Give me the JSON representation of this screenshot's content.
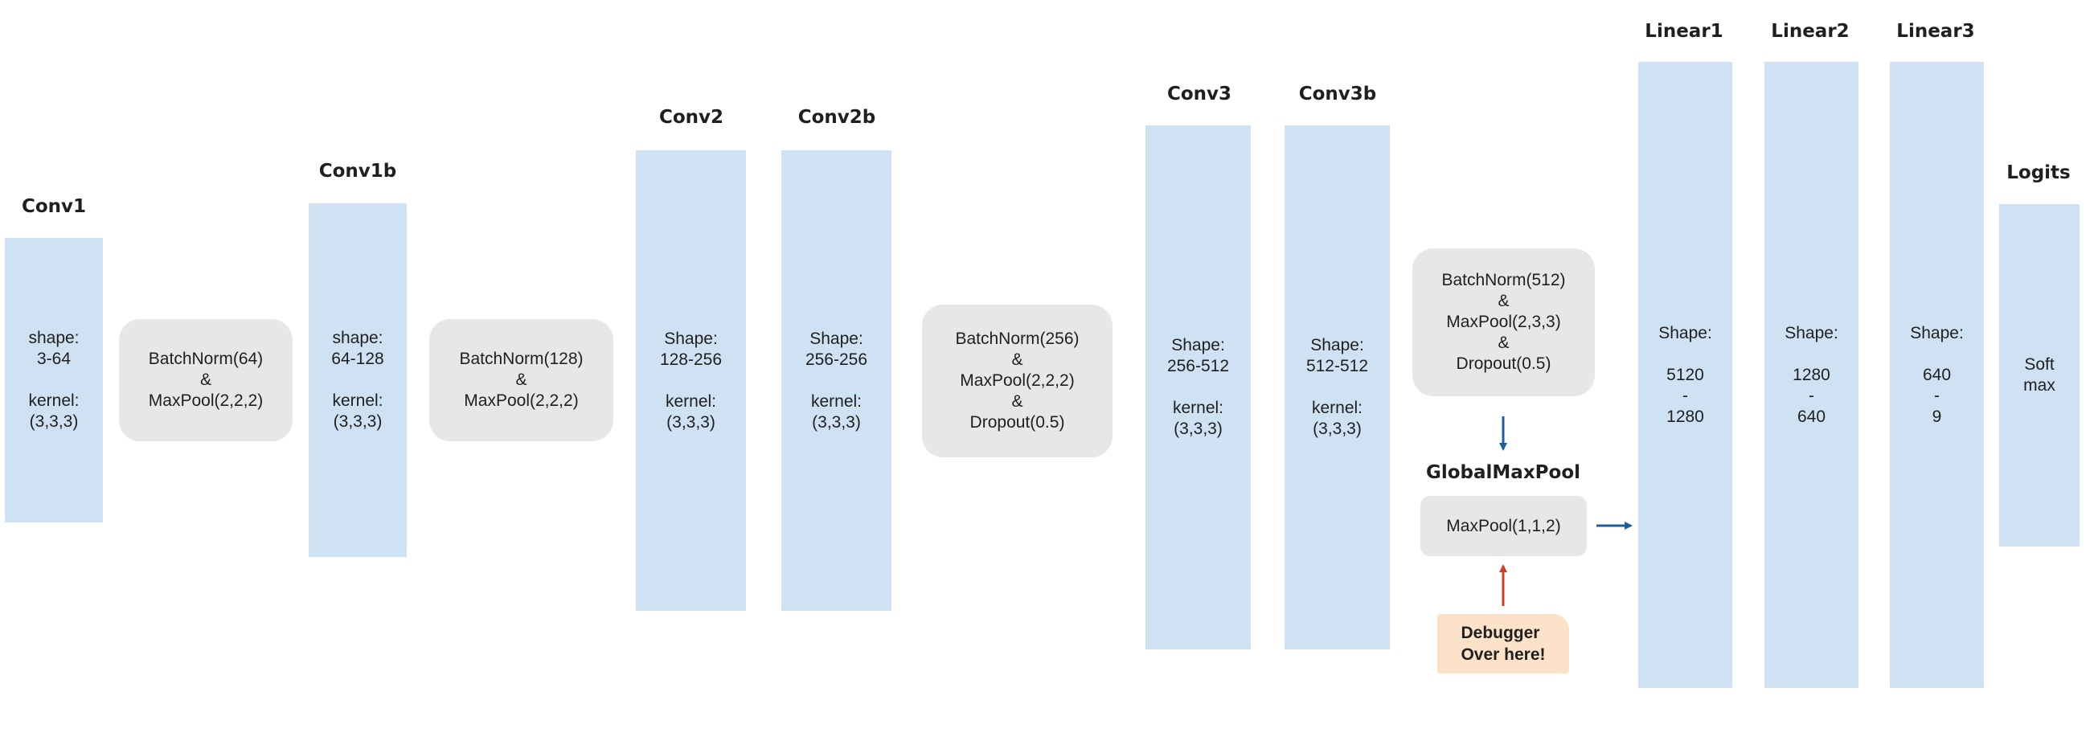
{
  "colors": {
    "layer_fill": "#cfe2f3",
    "op_fill": "#e6e8e8",
    "note_fill": "#fbe2c8",
    "arrow_blue": "#1f5f99",
    "arrow_red": "#cc4125",
    "text": "#1f1f1f"
  },
  "layers": {
    "conv1": {
      "title": "Conv1",
      "lines": [
        "shape:",
        "3-64",
        "",
        "kernel:",
        "(3,3,3)"
      ]
    },
    "conv1b": {
      "title": "Conv1b",
      "lines": [
        "shape:",
        "64-128",
        "",
        "kernel:",
        "(3,3,3)"
      ]
    },
    "conv2": {
      "title": "Conv2",
      "lines": [
        "Shape:",
        "128-256",
        "",
        "kernel:",
        "(3,3,3)"
      ]
    },
    "conv2b": {
      "title": "Conv2b",
      "lines": [
        "Shape:",
        "256-256",
        "",
        "kernel:",
        "(3,3,3)"
      ]
    },
    "conv3": {
      "title": "Conv3",
      "lines": [
        "Shape:",
        "256-512",
        "",
        "kernel:",
        "(3,3,3)"
      ]
    },
    "conv3b": {
      "title": "Conv3b",
      "lines": [
        "Shape:",
        "512-512",
        "",
        "kernel:",
        "(3,3,3)"
      ]
    },
    "linear1": {
      "title": "Linear1",
      "lines": [
        "Shape:",
        "",
        "5120",
        "-",
        "1280"
      ]
    },
    "linear2": {
      "title": "Linear2",
      "lines": [
        "Shape:",
        "",
        "1280",
        "-",
        "640"
      ]
    },
    "linear3": {
      "title": "Linear3",
      "lines": [
        "Shape:",
        "",
        "640",
        "-",
        "9"
      ]
    },
    "logits": {
      "title": "Logits",
      "lines": [
        "Soft",
        "max"
      ]
    }
  },
  "ops": {
    "op1": [
      "BatchNorm(64)",
      "&",
      "MaxPool(2,2,2)"
    ],
    "op2": [
      "BatchNorm(128)",
      "&",
      "MaxPool(2,2,2)"
    ],
    "op3": [
      "BatchNorm(256)",
      "&",
      "MaxPool(2,2,2)",
      "&",
      "Dropout(0.5)"
    ],
    "op4": [
      "BatchNorm(512)",
      "&",
      "MaxPool(2,3,3)",
      "&",
      "Dropout(0.5)"
    ]
  },
  "global_pool": {
    "title": "GlobalMaxPool",
    "label": "MaxPool(1,1,2)"
  },
  "note": [
    "Debugger",
    "Over here!"
  ]
}
